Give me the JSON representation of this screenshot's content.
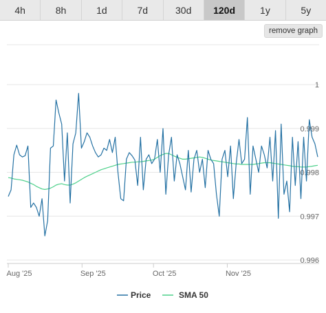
{
  "tabs": [
    {
      "label": "4h",
      "active": false
    },
    {
      "label": "8h",
      "active": false
    },
    {
      "label": "1d",
      "active": false
    },
    {
      "label": "7d",
      "active": false
    },
    {
      "label": "30d",
      "active": false
    },
    {
      "label": "120d",
      "active": true
    },
    {
      "label": "1y",
      "active": false
    },
    {
      "label": "5y",
      "active": false
    }
  ],
  "remove_graph_label": "remove graph",
  "colors": {
    "price": "#2471a3",
    "sma": "#4cd08a",
    "grid": "#e6e6e6",
    "axis": "#cccccc"
  },
  "chart_data": {
    "type": "line",
    "x_ticks": [
      "Aug '25",
      "Sep '25",
      "Oct '25",
      "Nov '25"
    ],
    "x_tick_days": [
      0,
      31,
      61,
      92
    ],
    "x_range": [
      "2025-07-30",
      "2025-12-07"
    ],
    "y_ticks": [
      0.996,
      0.997,
      0.998,
      0.999,
      1
    ],
    "ylim": [
      0.996,
      1.0
    ],
    "grid": true,
    "legend_position": "bottom-center",
    "series": [
      {
        "name": "Price",
        "values": [
          0.99745,
          0.9976,
          0.9984,
          0.99862,
          0.9984,
          0.99835,
          0.99838,
          0.9986,
          0.9972,
          0.9973,
          0.9972,
          0.997,
          0.9974,
          0.99655,
          0.9969,
          0.99855,
          0.9986,
          0.99965,
          0.99935,
          0.9991,
          0.9978,
          0.9989,
          0.9973,
          0.99865,
          0.9989,
          0.9998,
          0.99855,
          0.9987,
          0.9989,
          0.9988,
          0.9986,
          0.99845,
          0.99835,
          0.9984,
          0.99855,
          0.9985,
          0.99875,
          0.99845,
          0.9988,
          0.998,
          0.9974,
          0.99735,
          0.9983,
          0.99845,
          0.99838,
          0.99828,
          0.9977,
          0.9988,
          0.9976,
          0.9983,
          0.9984,
          0.9982,
          0.9983,
          0.99875,
          0.998,
          0.999,
          0.9975,
          0.9984,
          0.9988,
          0.9978,
          0.9984,
          0.9982,
          0.9979,
          0.9976,
          0.9985,
          0.99755,
          0.9983,
          0.9985,
          0.998,
          0.9983,
          0.99765,
          0.9985,
          0.9983,
          0.9982,
          0.9975,
          0.997,
          0.9983,
          0.9985,
          0.9979,
          0.9986,
          0.9974,
          0.9982,
          0.99875,
          0.9982,
          0.9983,
          0.99925,
          0.9975,
          0.9986,
          0.9983,
          0.998,
          0.9986,
          0.9984,
          0.9981,
          0.9988,
          0.9978,
          0.99895,
          0.99695,
          0.9991,
          0.9975,
          0.9978,
          0.9971,
          0.9988,
          0.9977,
          0.9987,
          0.9974,
          0.9988,
          0.9978,
          0.9992,
          0.9988,
          0.99865,
          0.99835
        ]
      },
      {
        "name": "SMA 50",
        "values": [
          0.99788,
          0.99787,
          0.99785,
          0.99784,
          0.99783,
          0.99782,
          0.9978,
          0.99778,
          0.99775,
          0.99772,
          0.99768,
          0.99765,
          0.99762,
          0.99761,
          0.99762,
          0.99764,
          0.99767,
          0.99771,
          0.99773,
          0.99774,
          0.99772,
          0.99771,
          0.99771,
          0.99773,
          0.99776,
          0.9978,
          0.99784,
          0.99788,
          0.99791,
          0.99794,
          0.99797,
          0.998,
          0.99803,
          0.99806,
          0.99808,
          0.9981,
          0.99812,
          0.99814,
          0.99816,
          0.99818,
          0.99819,
          0.9982,
          0.99821,
          0.99822,
          0.99823,
          0.99823,
          0.99824,
          0.99824,
          0.99825,
          0.99826,
          0.99827,
          0.99828,
          0.9983,
          0.99834,
          0.99838,
          0.99841,
          0.99843,
          0.99843,
          0.9984,
          0.99837,
          0.99834,
          0.99832,
          0.9983,
          0.9983,
          0.99831,
          0.99832,
          0.99833,
          0.99834,
          0.99835,
          0.99834,
          0.99832,
          0.9983,
          0.99828,
          0.99827,
          0.99826,
          0.99825,
          0.99824,
          0.99823,
          0.99822,
          0.99821,
          0.9982,
          0.99819,
          0.99819,
          0.99818,
          0.99818,
          0.99818,
          0.99818,
          0.99818,
          0.99819,
          0.9982,
          0.99821,
          0.99822,
          0.99822,
          0.99822,
          0.99821,
          0.9982,
          0.99819,
          0.99818,
          0.99817,
          0.99816,
          0.99815,
          0.99814,
          0.99813,
          0.99813,
          0.99812,
          0.99812,
          0.99812,
          0.99813,
          0.99814,
          0.99815,
          0.99816
        ]
      }
    ]
  }
}
